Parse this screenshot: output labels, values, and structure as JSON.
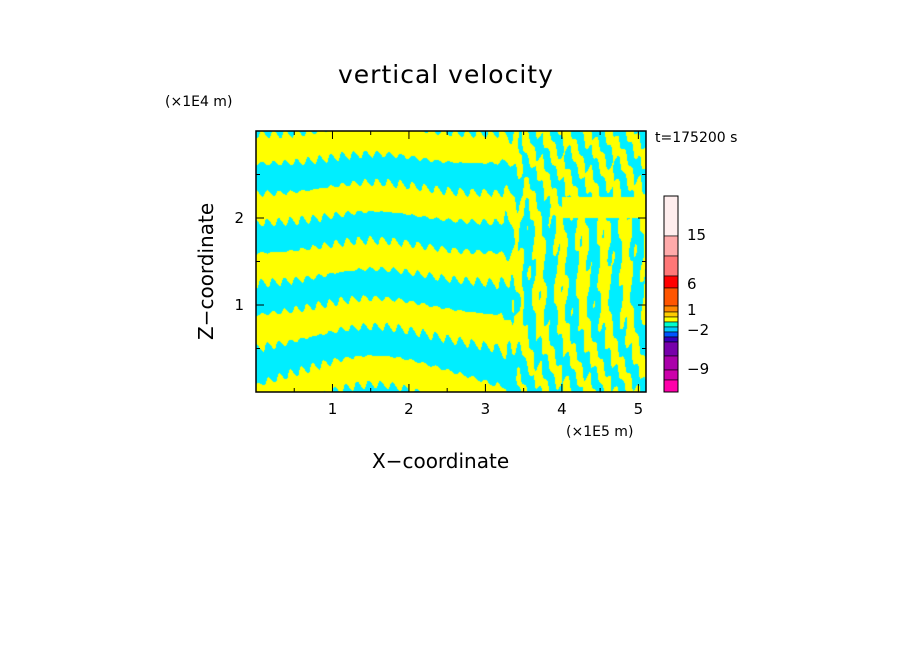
{
  "chart_data": {
    "type": "heatmap",
    "title": "vertical velocity",
    "xlabel": "X−coordinate",
    "ylabel": "Z−coordinate",
    "x_unit": "(×1E5 m)",
    "y_unit": "(×1E4 m)",
    "annotation": "t=175200 s",
    "xlim": [
      0,
      5.1
    ],
    "ylim": [
      0,
      3.0
    ],
    "x_ticks": [
      1,
      2,
      3,
      4,
      5
    ],
    "y_ticks": [
      1,
      2
    ],
    "x_tick_labels": [
      "1",
      "2",
      "3",
      "4",
      "5"
    ],
    "y_tick_labels": [
      "1",
      "2"
    ],
    "field_colors": {
      "positive": "#ffff00",
      "negative": "#00eeff"
    },
    "colorbar": {
      "tick_labels": [
        "15",
        "6",
        "1",
        "−2",
        "−9"
      ],
      "levels": [
        {
          "color": "#ff00aa"
        },
        {
          "color": "#cc00aa"
        },
        {
          "color": "#aa00aa"
        },
        {
          "color": "#7700aa"
        },
        {
          "color": "#3300bb"
        },
        {
          "color": "#0055ff"
        },
        {
          "color": "#00ccff"
        },
        {
          "color": "#00ffcc"
        },
        {
          "color": "#ffff00"
        },
        {
          "color": "#ffcc00"
        },
        {
          "color": "#ff8800"
        },
        {
          "color": "#ff5500"
        },
        {
          "color": "#ff0000"
        },
        {
          "color": "#ff7777"
        },
        {
          "color": "#ffaaaa"
        },
        {
          "color": "#ffeeee"
        }
      ]
    }
  }
}
